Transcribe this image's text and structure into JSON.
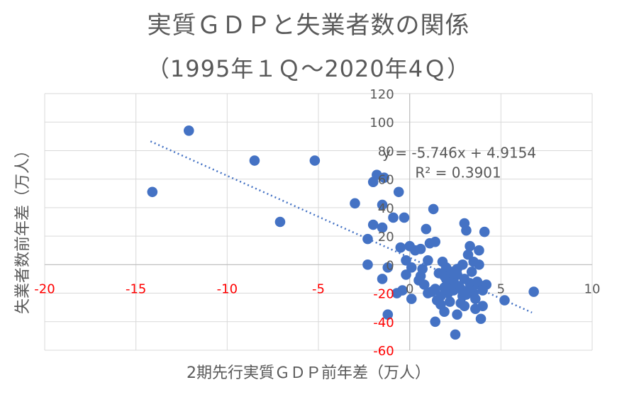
{
  "chart_data": {
    "type": "scatter",
    "title": "実質ＧＤＰと失業者数の関係",
    "subtitle": "（1995年１Ｑ～2020年4Ｑ）",
    "xlabel": "2期先行実質ＧＤＰ前年差（万人）",
    "ylabel": "失業者数前年差（万人）",
    "xlim": [
      -20,
      10
    ],
    "ylim": [
      -60,
      120
    ],
    "x_ticks": [
      "-20",
      "-15",
      "-10",
      "-5",
      "0",
      "5",
      "10"
    ],
    "y_ticks": [
      "120",
      "100",
      "80",
      "60",
      "40",
      "20",
      "0",
      "-20",
      "-40",
      "-60"
    ],
    "grid": true,
    "marker_color": "#4472C4",
    "trendline": {
      "slope": -5.746,
      "intercept": 4.9154,
      "x_range": [
        -14.2,
        6.7
      ],
      "equation": "y = -5.746x + 4.9154",
      "r_squared": "R² = 0.3901"
    },
    "points": [
      [
        -12.1,
        94
      ],
      [
        -14.1,
        51
      ],
      [
        -8.5,
        73
      ],
      [
        -5.2,
        73
      ],
      [
        -7.1,
        30
      ],
      [
        -3.0,
        43
      ],
      [
        -2.0,
        58
      ],
      [
        -1.8,
        63
      ],
      [
        -1.4,
        61
      ],
      [
        -1.5,
        42
      ],
      [
        -0.6,
        51
      ],
      [
        -2.0,
        28
      ],
      [
        -2.3,
        18
      ],
      [
        -0.9,
        33
      ],
      [
        -0.3,
        33
      ],
      [
        -1.5,
        26
      ],
      [
        -2.3,
        0
      ],
      [
        1.3,
        39
      ],
      [
        0.9,
        25
      ],
      [
        -0.5,
        12
      ],
      [
        0.0,
        13
      ],
      [
        0.6,
        11
      ],
      [
        1.1,
        15
      ],
      [
        1.4,
        16
      ],
      [
        0.3,
        10
      ],
      [
        -0.2,
        3
      ],
      [
        0.1,
        -2
      ],
      [
        -1.2,
        -2
      ],
      [
        1.0,
        3
      ],
      [
        1.8,
        2
      ],
      [
        -0.2,
        -7
      ],
      [
        0.6,
        -8
      ],
      [
        -1.5,
        -10
      ],
      [
        -0.4,
        -18
      ],
      [
        -0.7,
        -20
      ],
      [
        0.1,
        -24
      ],
      [
        -1.2,
        -35
      ],
      [
        1.4,
        -40
      ],
      [
        2.5,
        -49
      ],
      [
        2.6,
        -35
      ],
      [
        1.9,
        -33
      ],
      [
        3.9,
        -38
      ],
      [
        3.0,
        -29
      ],
      [
        3.6,
        -31
      ],
      [
        4.0,
        -29
      ],
      [
        5.2,
        -25
      ],
      [
        6.8,
        -19
      ],
      [
        4.2,
        -14
      ],
      [
        3.8,
        -14
      ],
      [
        3.1,
        24
      ],
      [
        3.0,
        29
      ],
      [
        4.1,
        23
      ],
      [
        3.3,
        13
      ],
      [
        3.8,
        10
      ],
      [
        3.2,
        7
      ],
      [
        3.5,
        2
      ],
      [
        2.9,
        0
      ],
      [
        3.8,
        0
      ],
      [
        2.0,
        -2
      ],
      [
        2.3,
        -5
      ],
      [
        2.6,
        -7
      ],
      [
        3.0,
        -10
      ],
      [
        3.3,
        -13
      ],
      [
        2.7,
        -15
      ],
      [
        2.4,
        -18
      ],
      [
        2.1,
        -20
      ],
      [
        1.7,
        -22
      ],
      [
        1.4,
        -17
      ],
      [
        1.5,
        -25
      ],
      [
        1.7,
        -28
      ],
      [
        2.2,
        -26
      ],
      [
        2.9,
        -22
      ],
      [
        3.2,
        -18
      ],
      [
        3.5,
        -20
      ],
      [
        3.6,
        -24
      ],
      [
        2.8,
        -27
      ],
      [
        2.3,
        -14
      ],
      [
        1.9,
        -16
      ],
      [
        1.2,
        -19
      ],
      [
        0.8,
        -14
      ],
      [
        0.5,
        -11
      ],
      [
        1.0,
        -20
      ],
      [
        2.0,
        -10
      ],
      [
        2.4,
        -11
      ],
      [
        2.8,
        -17
      ],
      [
        3.1,
        -21
      ],
      [
        3.4,
        -16
      ],
      [
        3.7,
        -12
      ],
      [
        4.0,
        -18
      ],
      [
        1.6,
        -6
      ],
      [
        1.9,
        -8
      ],
      [
        2.6,
        -3
      ],
      [
        0.7,
        -3
      ],
      [
        3.4,
        -5
      ]
    ]
  }
}
